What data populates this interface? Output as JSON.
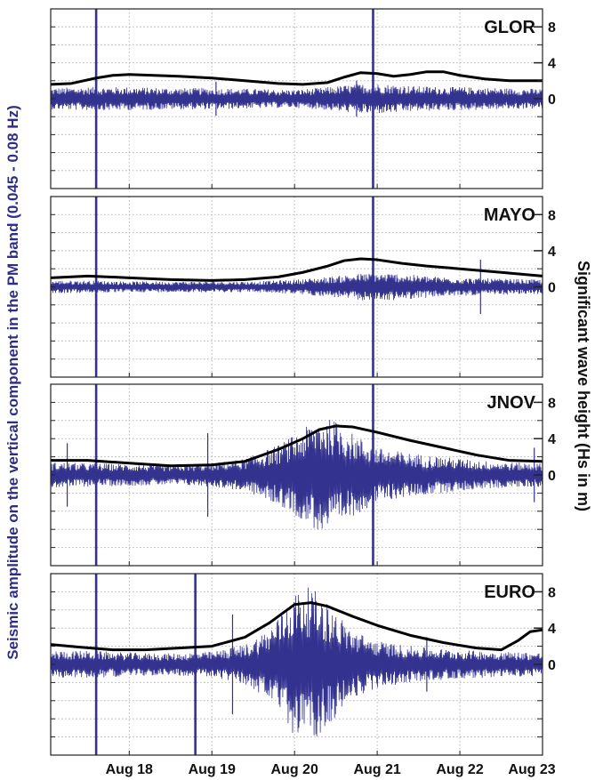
{
  "chart_data": {
    "type": "line",
    "ylabel_left": "Seismic amplitude on the vertical component in the PM band (0.045 - 0.08 Hz)",
    "ylabel_right": "Significant wave height (Hs in m)",
    "x_ticks": [
      {
        "day": 18,
        "label": "Aug 18"
      },
      {
        "day": 19,
        "label": "Aug 19"
      },
      {
        "day": 20,
        "label": "Aug 20"
      },
      {
        "day": 21,
        "label": "Aug 21"
      },
      {
        "day": 22,
        "label": "Aug 22"
      },
      {
        "day": 23,
        "label": "Aug 23"
      }
    ],
    "xlim": [
      17.05,
      23.0
    ],
    "right_axis": {
      "ticks": [
        0,
        4,
        8
      ],
      "ylim": [
        -10,
        10
      ]
    },
    "grid": true,
    "colors": {
      "seismic": "#33338f",
      "wave_height": "#000000",
      "grid": "#b4b4b4"
    },
    "panels": [
      {
        "station": "GLOR",
        "wave_height": {
          "x": [
            17.05,
            17.3,
            17.6,
            17.8,
            18.0,
            18.3,
            18.6,
            19.0,
            19.4,
            19.8,
            20.1,
            20.4,
            20.6,
            20.8,
            21.0,
            21.2,
            21.4,
            21.6,
            21.8,
            22.0,
            22.3,
            22.6,
            23.0
          ],
          "y": [
            1.6,
            1.7,
            2.3,
            2.6,
            2.7,
            2.6,
            2.5,
            2.3,
            2.0,
            1.7,
            1.6,
            1.8,
            2.4,
            2.9,
            2.8,
            2.5,
            2.7,
            3.0,
            3.0,
            2.6,
            2.2,
            2.0,
            2.0
          ]
        },
        "seismic_envelope": {
          "x": [
            17.05,
            17.5,
            18.0,
            18.5,
            19.0,
            19.5,
            20.0,
            20.3,
            20.6,
            20.9,
            21.2,
            21.5,
            22.0,
            22.5,
            23.0
          ],
          "y": [
            1.2,
            1.3,
            1.3,
            1.2,
            1.2,
            1.1,
            1.0,
            1.2,
            1.5,
            1.7,
            1.6,
            1.4,
            1.3,
            1.2,
            1.1
          ]
        },
        "spikes": [
          {
            "day": 17.6,
            "y": 10
          },
          {
            "day": 20.95,
            "y": 10
          },
          {
            "day": 19.05,
            "y": 1.9
          },
          {
            "day": 20.75,
            "y": 2.0
          }
        ]
      },
      {
        "station": "MAYO",
        "wave_height": {
          "x": [
            17.05,
            17.5,
            18.0,
            18.5,
            19.0,
            19.4,
            19.8,
            20.1,
            20.4,
            20.6,
            20.8,
            21.0,
            21.3,
            21.6,
            22.0,
            22.5,
            23.0
          ],
          "y": [
            1.0,
            1.2,
            1.0,
            0.8,
            0.7,
            0.8,
            1.1,
            1.6,
            2.3,
            2.9,
            3.1,
            3.0,
            2.6,
            2.3,
            2.0,
            1.6,
            1.2
          ]
        },
        "seismic_envelope": {
          "x": [
            17.05,
            17.5,
            18.0,
            18.5,
            19.0,
            19.5,
            20.0,
            20.4,
            20.8,
            21.2,
            21.6,
            22.0,
            22.5,
            23.0
          ],
          "y": [
            0.7,
            0.7,
            0.6,
            0.6,
            0.6,
            0.6,
            0.8,
            1.1,
            1.5,
            1.5,
            1.2,
            1.0,
            0.9,
            0.8
          ]
        },
        "spikes": [
          {
            "day": 17.6,
            "y": 10
          },
          {
            "day": 20.95,
            "y": 10
          },
          {
            "day": 22.25,
            "y": 3.0
          }
        ]
      },
      {
        "station": "JNOV",
        "wave_height": {
          "x": [
            17.05,
            17.5,
            18.0,
            18.5,
            19.0,
            19.4,
            19.8,
            20.1,
            20.3,
            20.5,
            20.7,
            21.0,
            21.4,
            21.8,
            22.2,
            22.6,
            23.0
          ],
          "y": [
            1.6,
            1.6,
            1.3,
            1.0,
            1.1,
            1.5,
            2.8,
            4.0,
            5.0,
            5.4,
            5.3,
            4.7,
            3.8,
            3.0,
            2.2,
            1.6,
            1.5
          ]
        },
        "seismic_envelope": {
          "x": [
            17.05,
            17.5,
            18.0,
            18.5,
            19.0,
            19.4,
            19.8,
            20.1,
            20.3,
            20.5,
            20.7,
            21.0,
            21.4,
            21.8,
            22.2,
            22.6,
            23.0
          ],
          "y": [
            1.4,
            1.3,
            1.2,
            1.1,
            1.3,
            1.8,
            3.3,
            5.0,
            6.4,
            6.0,
            4.6,
            3.0,
            2.4,
            2.0,
            1.6,
            1.4,
            1.3
          ]
        },
        "spikes": [
          {
            "day": 17.6,
            "y": 10
          },
          {
            "day": 20.95,
            "y": 10
          },
          {
            "day": 17.25,
            "y": 3.5
          },
          {
            "day": 18.95,
            "y": 4.6
          },
          {
            "day": 22.9,
            "y": 3.0
          }
        ]
      },
      {
        "station": "EURO",
        "wave_height": {
          "x": [
            17.05,
            17.4,
            17.8,
            18.2,
            18.6,
            19.0,
            19.4,
            19.7,
            20.0,
            20.2,
            20.4,
            20.7,
            21.0,
            21.4,
            21.8,
            22.2,
            22.5,
            22.7,
            22.85,
            23.0
          ],
          "y": [
            2.2,
            1.9,
            1.6,
            1.6,
            1.8,
            2.0,
            3.0,
            4.6,
            6.6,
            6.8,
            6.4,
            5.3,
            4.3,
            3.2,
            2.4,
            1.8,
            1.6,
            2.6,
            3.6,
            3.8
          ]
        },
        "seismic_envelope": {
          "x": [
            17.05,
            17.5,
            18.0,
            18.5,
            19.0,
            19.4,
            19.7,
            20.0,
            20.2,
            20.4,
            20.7,
            21.0,
            21.4,
            21.8,
            22.2,
            22.6,
            23.0
          ],
          "y": [
            1.5,
            1.5,
            1.3,
            1.2,
            1.4,
            2.2,
            4.0,
            8.0,
            8.6,
            6.8,
            3.8,
            2.6,
            2.0,
            1.7,
            1.5,
            1.4,
            1.3
          ]
        },
        "spikes": [
          {
            "day": 17.6,
            "y": 10
          },
          {
            "day": 18.8,
            "y": 10
          },
          {
            "day": 19.25,
            "y": 5.5
          },
          {
            "day": 20.05,
            "y": 7.0
          },
          {
            "day": 21.6,
            "y": 3.0
          }
        ]
      }
    ]
  }
}
